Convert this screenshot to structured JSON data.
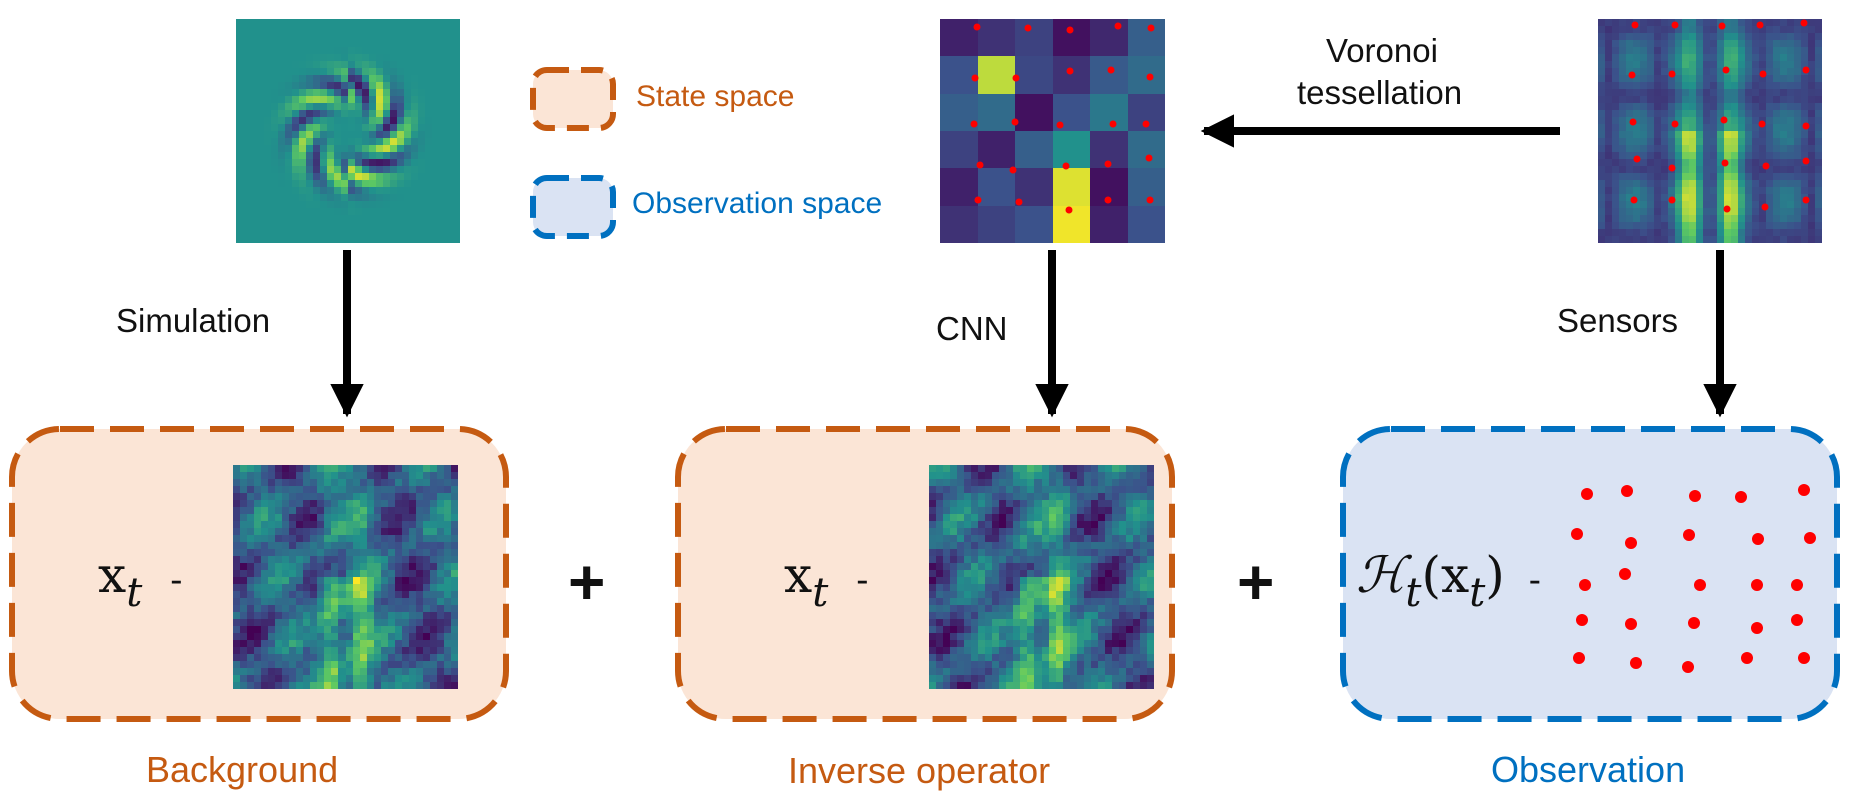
{
  "legend": {
    "state_space": "State space",
    "observation_space": "Observation space"
  },
  "labels": {
    "simulation": "Simulation",
    "cnn": "CNN",
    "sensors": "Sensors",
    "voronoi_line1": "Voronoi",
    "voronoi_line2": "tessellation"
  },
  "captions": {
    "background": "Background",
    "inverse_operator": "Inverse operator",
    "observation": "Observation"
  },
  "formulas": {
    "background_var": "x",
    "background_sub": "t",
    "inverse_var": "x",
    "inverse_sub": "t",
    "obs_operator": "ℋ",
    "obs_sub": "t",
    "obs_arg_open": "(x",
    "obs_arg_sub": "t",
    "obs_arg_close": ")",
    "dash": "-"
  },
  "plus_sign": "+",
  "colors": {
    "state_accent": "#c55a11",
    "state_fill": "#fbe5d6",
    "obs_accent": "#0070c0",
    "obs_fill": "#dae3f3",
    "sensor_dot": "#ff0000",
    "arrow": "#000000"
  }
}
